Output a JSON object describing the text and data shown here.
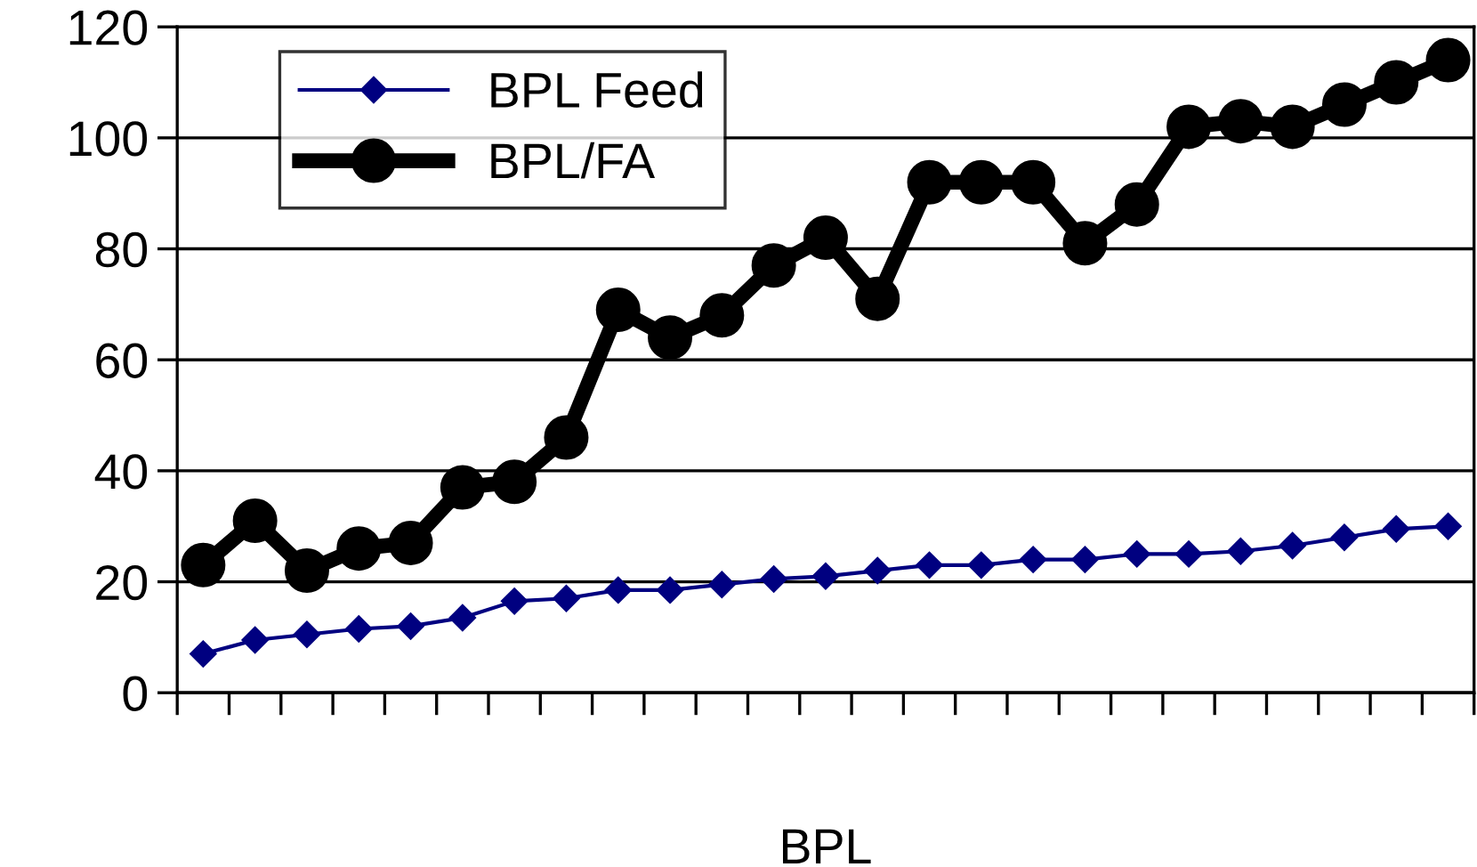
{
  "chart_data": {
    "type": "line",
    "xlabel": "BPL",
    "categories": [
      null,
      null,
      null,
      null,
      null,
      null,
      null,
      null,
      null,
      null,
      null,
      null,
      null,
      null,
      null,
      null,
      null,
      null,
      null,
      null,
      null,
      null,
      null,
      null,
      null
    ],
    "series": [
      {
        "name": "BPL Feed",
        "color": "#000080",
        "marker": "diamond",
        "values": [
          7,
          9.5,
          10.5,
          11.5,
          12,
          13.5,
          16.5,
          17,
          18.5,
          18.5,
          19.5,
          20.5,
          21,
          22,
          23,
          23,
          24,
          24,
          25,
          25,
          25.5,
          26.5,
          28,
          29.5,
          30
        ]
      },
      {
        "name": "BPL/FA",
        "color": "#000000",
        "marker": "circle",
        "values": [
          23,
          31,
          22,
          26,
          27,
          37,
          38,
          46,
          69,
          64,
          68,
          77,
          82,
          71,
          92,
          92,
          92,
          81,
          88,
          102,
          103,
          102,
          106,
          110,
          114
        ]
      }
    ],
    "ylim": [
      0,
      120
    ],
    "yticks": [
      0,
      20,
      40,
      60,
      80,
      100,
      120
    ],
    "grid": "y",
    "legend": "top left"
  }
}
